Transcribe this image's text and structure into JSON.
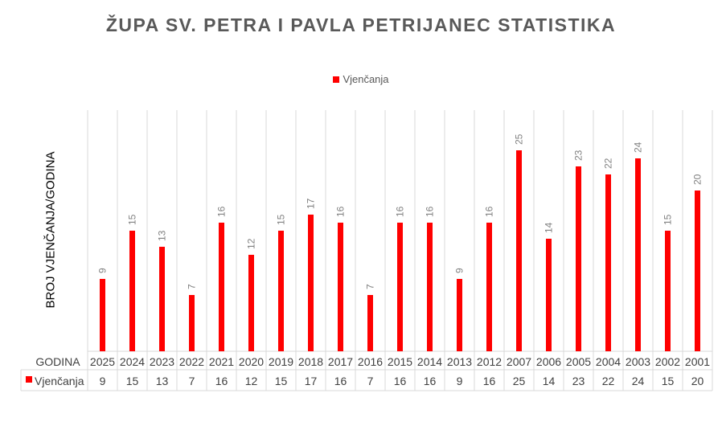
{
  "chart_data": {
    "type": "bar",
    "title": "ŽUPA SV. PETRA I PAVLA PETRIJANEC STATISTIKA",
    "xlabel": "GODINA",
    "ylabel": "BROJ VJENČANJA/GODINA",
    "categories": [
      "2025",
      "2024",
      "2023",
      "2022",
      "2021",
      "2020",
      "2019",
      "2018",
      "2017",
      "2016",
      "2015",
      "2014",
      "2013",
      "2012",
      "2007",
      "2006",
      "2005",
      "2004",
      "2003",
      "2002",
      "2001"
    ],
    "series": [
      {
        "name": "Vjenčanja",
        "values": [
          9,
          15,
          13,
          7,
          16,
          12,
          15,
          17,
          16,
          7,
          16,
          16,
          9,
          16,
          25,
          14,
          23,
          22,
          24,
          15,
          20
        ],
        "color": "#ff0000"
      }
    ],
    "ylim": [
      0,
      30
    ],
    "grid": "vertical",
    "legend": "top",
    "data_labels": true,
    "data_table": true
  }
}
